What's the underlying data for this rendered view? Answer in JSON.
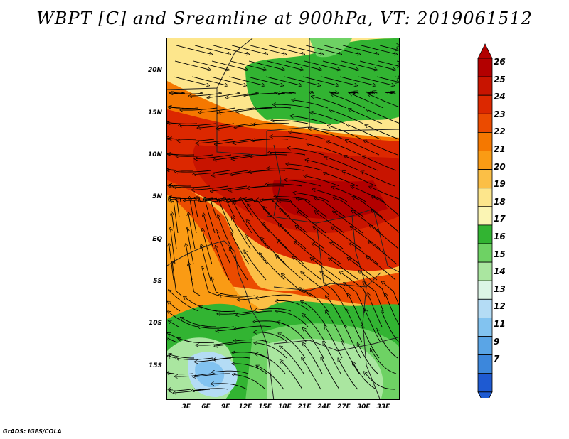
{
  "title": "WBPT [C] and Sreamline at 900hPa, VT: 2019061512",
  "footer": "GrADS: IGES/COLA",
  "map": {
    "lat_labels": [
      "20N",
      "15N",
      "10N",
      "5N",
      "EQ",
      "5S",
      "10S",
      "15S"
    ],
    "lon_labels": [
      "3E",
      "6E",
      "9E",
      "12E",
      "15E",
      "18E",
      "21E",
      "24E",
      "27E",
      "30E",
      "33E"
    ],
    "lon_range": [
      0,
      35
    ],
    "lat_range": [
      -19,
      24
    ]
  },
  "colorbar": {
    "labels": [
      "26",
      "25",
      "24",
      "23",
      "22",
      "21",
      "20",
      "19",
      "18",
      "17",
      "16",
      "15",
      "14",
      "13",
      "12",
      "11",
      "9",
      "7"
    ],
    "colors": [
      "#b30000",
      "#c81400",
      "#dc2800",
      "#eb4b00",
      "#f57800",
      "#fa9b14",
      "#fbbf46",
      "#fde68c",
      "#fbf5b4",
      "#32b432",
      "#6ed264",
      "#aae6a0",
      "#dcf5e6",
      "#b4dcf5",
      "#82c3f0",
      "#5aa5e6",
      "#3c87dc",
      "#1e5ad2"
    ]
  }
}
